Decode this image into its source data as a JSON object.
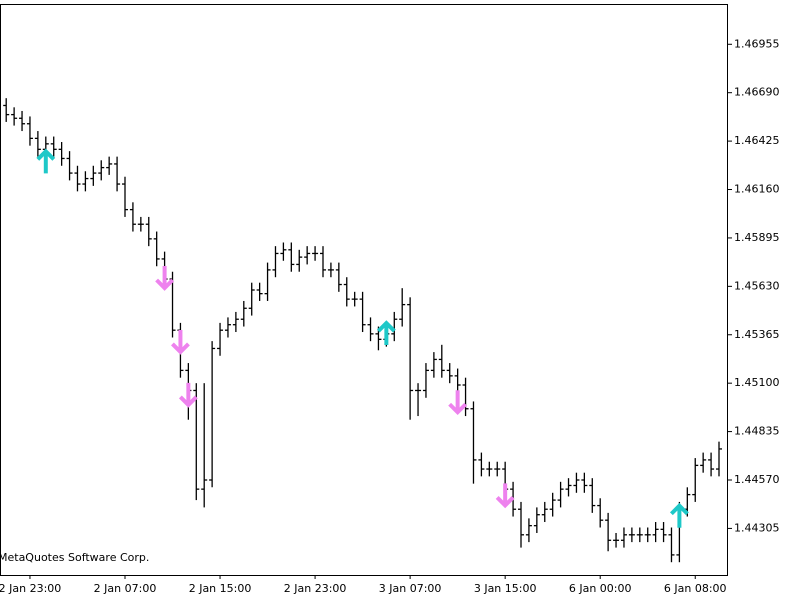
{
  "chart_data": {
    "type": "ohlc",
    "watermark": "MetaQuotes Software Corp.",
    "categories": [
      null,
      null,
      null,
      "2 Jan 23:00",
      null,
      null,
      null,
      null,
      null,
      null,
      null,
      null,
      null,
      null,
      null,
      "2 Jan 07:00",
      null,
      null,
      null,
      null,
      null,
      null,
      null,
      null,
      null,
      null,
      null,
      "2 Jan 15:00",
      null,
      null,
      null,
      null,
      null,
      null,
      null,
      null,
      null,
      null,
      null,
      "2 Jan 23:00",
      null,
      null,
      null,
      null,
      null,
      null,
      null,
      null,
      null,
      null,
      null,
      "3 Jan 07:00",
      null,
      null,
      null,
      null,
      null,
      null,
      null,
      null,
      null,
      null,
      null,
      "3 Jan 15:00",
      null,
      null,
      null,
      null,
      null,
      null,
      null,
      null,
      null,
      null,
      null,
      "6 Jan 00:00",
      null,
      null,
      null,
      null,
      null,
      null,
      null,
      null,
      null,
      null,
      null,
      "6 Jan 08:00",
      null,
      null,
      null
    ],
    "open": [
      1.4662,
      1.4657,
      1.4655,
      1.4652,
      1.4644,
      1.4638,
      1.4641,
      1.4638,
      1.4633,
      1.4625,
      1.4619,
      1.4622,
      1.4625,
      1.4628,
      1.463,
      1.4619,
      1.4605,
      1.4597,
      1.4597,
      1.4589,
      1.4578,
      1.4567,
      1.4539,
      1.4517,
      1.4506,
      1.4452,
      1.4457,
      1.4529,
      1.4539,
      1.4542,
      1.4545,
      1.4551,
      1.4561,
      1.4559,
      1.4572,
      1.4581,
      1.4583,
      1.4575,
      1.4579,
      1.4581,
      1.4581,
      1.4572,
      1.4572,
      1.4564,
      1.4556,
      1.4556,
      1.4542,
      1.4537,
      1.4534,
      1.4537,
      1.4545,
      1.4553,
      1.4506,
      1.4506,
      1.4517,
      1.4523,
      1.4517,
      1.4514,
      1.4509,
      1.4496,
      1.4468,
      1.4463,
      1.4463,
      1.4463,
      1.4452,
      1.4441,
      1.4427,
      1.4432,
      1.4438,
      1.4441,
      1.4446,
      1.4452,
      1.4454,
      1.4457,
      1.4454,
      1.4443,
      1.4435,
      1.4424,
      1.4424,
      1.4427,
      1.4427,
      1.4427,
      1.4427,
      1.443,
      1.4427,
      1.4416,
      1.4441,
      1.4449,
      1.4465,
      1.4468,
      1.4463
    ],
    "high": [
      1.4666,
      1.4661,
      1.4659,
      1.4656,
      1.4648,
      1.4645,
      1.4645,
      1.4642,
      1.4637,
      1.4629,
      1.4626,
      1.4629,
      1.4632,
      1.4634,
      1.4634,
      1.4623,
      1.4609,
      1.4601,
      1.4601,
      1.4593,
      1.4582,
      1.4571,
      1.4543,
      1.4521,
      1.451,
      1.451,
      1.4533,
      1.4543,
      1.4546,
      1.4549,
      1.4555,
      1.4565,
      1.4565,
      1.4576,
      1.4585,
      1.4587,
      1.4587,
      1.4583,
      1.4585,
      1.4585,
      1.4585,
      1.4576,
      1.4576,
      1.4568,
      1.456,
      1.456,
      1.4546,
      1.4541,
      1.4541,
      1.4549,
      1.4562,
      1.4557,
      1.451,
      1.4521,
      1.4527,
      1.4531,
      1.4521,
      1.4518,
      1.4513,
      1.45,
      1.4472,
      1.4467,
      1.4467,
      1.4467,
      1.4456,
      1.4445,
      1.4436,
      1.4442,
      1.4445,
      1.445,
      1.4456,
      1.4458,
      1.4461,
      1.4461,
      1.4458,
      1.4447,
      1.4439,
      1.4428,
      1.4431,
      1.4431,
      1.4431,
      1.4431,
      1.4434,
      1.4434,
      1.4431,
      1.4445,
      1.4453,
      1.4469,
      1.4472,
      1.4472,
      1.4478
    ],
    "low": [
      1.4653,
      1.4651,
      1.4648,
      1.464,
      1.4634,
      1.4634,
      1.4634,
      1.4629,
      1.4621,
      1.4615,
      1.4615,
      1.4618,
      1.4621,
      1.4624,
      1.4615,
      1.4601,
      1.4593,
      1.4593,
      1.4585,
      1.4574,
      1.4563,
      1.4535,
      1.4513,
      1.449,
      1.4446,
      1.4442,
      1.4453,
      1.4525,
      1.4535,
      1.4538,
      1.4541,
      1.4547,
      1.4555,
      1.4555,
      1.4568,
      1.4577,
      1.4571,
      1.4571,
      1.4575,
      1.4577,
      1.4568,
      1.4568,
      1.456,
      1.4552,
      1.4552,
      1.4538,
      1.4533,
      1.4528,
      1.453,
      1.4533,
      1.4541,
      1.449,
      1.4492,
      1.4502,
      1.4513,
      1.4513,
      1.451,
      1.4505,
      1.4492,
      1.4455,
      1.4459,
      1.4459,
      1.4459,
      1.4448,
      1.4437,
      1.442,
      1.4423,
      1.4428,
      1.4434,
      1.4437,
      1.4442,
      1.4448,
      1.445,
      1.445,
      1.4439,
      1.4431,
      1.4418,
      1.442,
      1.442,
      1.4423,
      1.4423,
      1.4423,
      1.4423,
      1.4423,
      1.4412,
      1.4412,
      1.4437,
      1.4445,
      1.4461,
      1.4459,
      1.4459
    ],
    "close": [
      1.4657,
      1.4655,
      1.4652,
      1.4644,
      1.4638,
      1.4641,
      1.4638,
      1.4633,
      1.4625,
      1.4619,
      1.4622,
      1.4625,
      1.4628,
      1.463,
      1.4619,
      1.4605,
      1.4597,
      1.4597,
      1.4589,
      1.4578,
      1.4567,
      1.4539,
      1.4517,
      1.4506,
      1.4452,
      1.4457,
      1.4529,
      1.4539,
      1.4542,
      1.4545,
      1.4551,
      1.4561,
      1.4559,
      1.4572,
      1.4581,
      1.4583,
      1.4575,
      1.4579,
      1.4581,
      1.4581,
      1.4572,
      1.4572,
      1.4564,
      1.4556,
      1.4556,
      1.4542,
      1.4537,
      1.4534,
      1.4537,
      1.4545,
      1.4553,
      1.4506,
      1.4506,
      1.4517,
      1.4523,
      1.4517,
      1.4514,
      1.4509,
      1.4496,
      1.4468,
      1.4463,
      1.4463,
      1.4463,
      1.4452,
      1.4441,
      1.4427,
      1.4432,
      1.4438,
      1.4441,
      1.4446,
      1.4452,
      1.4454,
      1.4457,
      1.4454,
      1.4443,
      1.4435,
      1.4424,
      1.4424,
      1.4427,
      1.4427,
      1.4427,
      1.4427,
      1.443,
      1.4427,
      1.4416,
      1.4441,
      1.4449,
      1.4465,
      1.4468,
      1.4463,
      1.4474
    ],
    "bar_color": "#000000",
    "up_arrows": {
      "color": "#1ec8c8",
      "values": [
        null,
        null,
        null,
        null,
        null,
        1.4638,
        null,
        null,
        null,
        null,
        null,
        null,
        null,
        null,
        null,
        null,
        null,
        null,
        null,
        null,
        null,
        null,
        null,
        null,
        null,
        null,
        null,
        null,
        null,
        null,
        null,
        null,
        null,
        null,
        null,
        null,
        null,
        null,
        null,
        null,
        null,
        null,
        null,
        null,
        null,
        null,
        null,
        null,
        1.4544,
        null,
        null,
        null,
        null,
        null,
        null,
        null,
        null,
        null,
        null,
        null,
        null,
        null,
        null,
        null,
        null,
        null,
        null,
        null,
        null,
        null,
        null,
        null,
        null,
        null,
        null,
        null,
        null,
        null,
        null,
        null,
        null,
        null,
        null,
        null,
        null,
        1.4444,
        null,
        null,
        null,
        null,
        null
      ]
    },
    "down_arrows": {
      "color": "#ee82ee",
      "values": [
        null,
        null,
        null,
        null,
        null,
        null,
        null,
        null,
        null,
        null,
        null,
        null,
        null,
        null,
        null,
        null,
        null,
        null,
        null,
        null,
        1.4561,
        null,
        1.4526,
        1.4497,
        null,
        null,
        null,
        null,
        null,
        null,
        null,
        null,
        null,
        null,
        null,
        null,
        null,
        null,
        null,
        null,
        null,
        null,
        null,
        null,
        null,
        null,
        null,
        null,
        null,
        null,
        null,
        null,
        null,
        null,
        null,
        null,
        null,
        1.4493,
        null,
        null,
        null,
        null,
        null,
        1.4442,
        null,
        null,
        null,
        null,
        null,
        null,
        null,
        null,
        null,
        null,
        null,
        null,
        null,
        null,
        null,
        null,
        null,
        null,
        null,
        null,
        null,
        null,
        null,
        null,
        null,
        null,
        null
      ]
    },
    "ylim": [
      1.4405,
      1.4717
    ],
    "yticks": [
      1.44305,
      {
        "value": 1.4457,
        "label": "1.44570"
      },
      1.44835,
      {
        "value": 1.451,
        "label": "1.45100"
      },
      1.45365,
      {
        "value": 1.4563,
        "label": "1.45630"
      },
      1.45895,
      {
        "value": 1.4616,
        "label": "1.46160"
      },
      1.46425,
      {
        "value": 1.4669,
        "label": "1.46690"
      },
      1.46955
    ]
  }
}
